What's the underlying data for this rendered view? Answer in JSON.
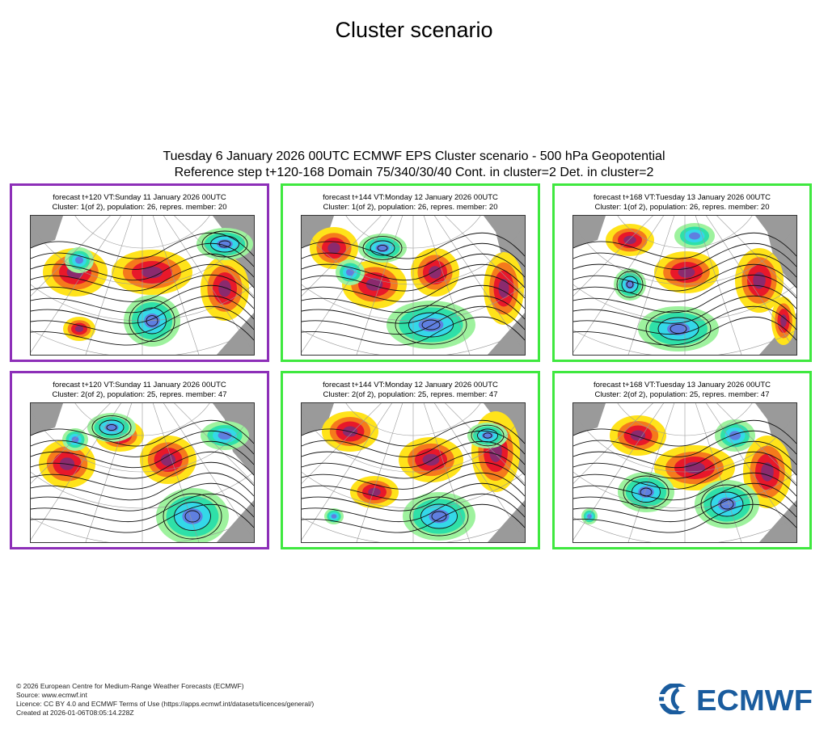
{
  "page": {
    "title": "Cluster scenario"
  },
  "figure": {
    "title_line1": "Tuesday 6 January 2026 00UTC ECMWF EPS Cluster scenario - 500 hPa Geopotential",
    "title_line2": "Reference step t+120-168 Domain 75/340/30/40 Cont. in cluster=2 Det. in cluster=2"
  },
  "colors": {
    "purple_border": "#8d2fb8",
    "green_border": "#3fe83f",
    "positive_strong": "#8b2a6e",
    "positive_medium": "#e8182a",
    "positive_light": "#f57a1c",
    "positive_weak": "#ffe31a",
    "negative_weak": "#9ef29e",
    "negative_medium": "#2fe0a8",
    "negative_strong": "#34d8e8",
    "negative_extreme": "#5f7fe0",
    "land_grey": "#9a9a9a",
    "logo_blue": "#1a5c9e"
  },
  "panels": [
    {
      "border": "purple",
      "caption1": "forecast t+120 VT:Sunday 11 January 2026 00UTC",
      "caption2": "Cluster: 1(of 2), population: 26, repres. member: 20"
    },
    {
      "border": "green",
      "caption1": "forecast t+144 VT:Monday 12 January 2026 00UTC",
      "caption2": "Cluster: 1(of 2), population: 26, repres. member: 20"
    },
    {
      "border": "green",
      "caption1": "forecast t+168 VT:Tuesday 13 January 2026 00UTC",
      "caption2": "Cluster: 1(of 2), population: 26, repres. member: 20"
    },
    {
      "border": "purple",
      "caption1": "forecast t+120 VT:Sunday 11 January 2026 00UTC",
      "caption2": "Cluster: 2(of 2), population: 25, repres. member: 47"
    },
    {
      "border": "green",
      "caption1": "forecast t+144 VT:Monday 12 January 2026 00UTC",
      "caption2": "Cluster: 2(of 2), population: 25, repres. member: 47"
    },
    {
      "border": "green",
      "caption1": "forecast t+168 VT:Tuesday 13 January 2026 00UTC",
      "caption2": "Cluster: 2(of 2), population: 25, repres. member: 47"
    }
  ],
  "footer": {
    "copyright": "© 2026 European Centre for Medium-Range Weather Forecasts (ECMWF)",
    "source": "Source: www.ecmwf.int",
    "licence": "Licence: CC BY 4.0 and ECMWF Terms of Use (https://apps.ecmwf.int/datasets/licences/general/)",
    "created": "Created at 2026-01-06T08:05:14.228Z"
  },
  "logo": {
    "text": "ECMWF",
    "icon": "ecmwf-logo-icon"
  }
}
